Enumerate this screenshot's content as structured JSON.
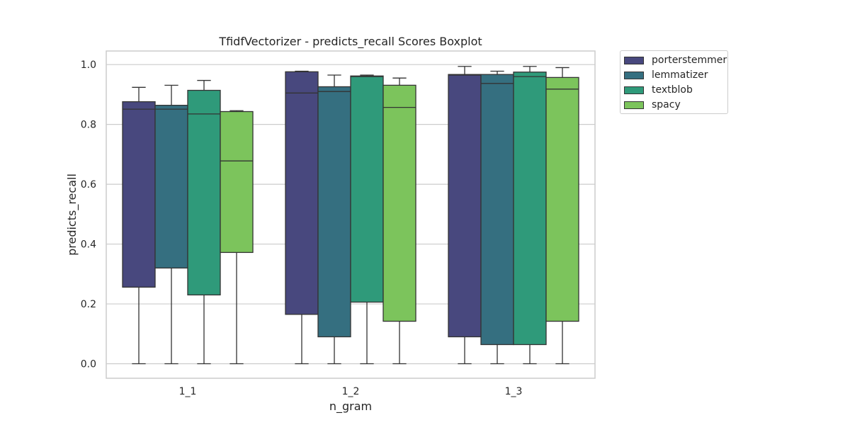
{
  "chart_data": {
    "type": "boxplot",
    "title": "TfidfVectorizer - predicts_recall  Scores Boxplot",
    "xlabel": "n_gram",
    "ylabel": "predicts_recall",
    "categories": [
      "1_1",
      "1_2",
      "1_3"
    ],
    "ylim": [
      -0.05,
      1.05
    ],
    "yticks": [
      "0.0",
      "0.2",
      "0.4",
      "0.6",
      "0.8",
      "1.0"
    ],
    "grid": true,
    "legend_position": "outside-top-right",
    "series": [
      {
        "name": "porterstemmer",
        "color": "#48487e",
        "boxes": [
          {
            "min": 0.0,
            "q1": 0.256,
            "median": 0.851,
            "q3": 0.876,
            "max": 0.924
          },
          {
            "min": 0.0,
            "q1": 0.165,
            "median": 0.905,
            "q3": 0.976,
            "max": 0.978
          },
          {
            "min": 0.0,
            "q1": 0.09,
            "median": 0.965,
            "q3": 0.967,
            "max": 0.994
          }
        ]
      },
      {
        "name": "lemmatizer",
        "color": "#356f80",
        "boxes": [
          {
            "min": 0.0,
            "q1": 0.32,
            "median": 0.851,
            "q3": 0.864,
            "max": 0.931
          },
          {
            "min": 0.0,
            "q1": 0.09,
            "median": 0.91,
            "q3": 0.926,
            "max": 0.965
          },
          {
            "min": 0.0,
            "q1": 0.064,
            "median": 0.937,
            "q3": 0.967,
            "max": 0.978
          }
        ]
      },
      {
        "name": "textblob",
        "color": "#2f9a7a",
        "boxes": [
          {
            "min": 0.0,
            "q1": 0.23,
            "median": 0.835,
            "q3": 0.914,
            "max": 0.947
          },
          {
            "min": 0.0,
            "q1": 0.206,
            "median": 0.96,
            "q3": 0.962,
            "max": 0.965
          },
          {
            "min": 0.0,
            "q1": 0.064,
            "median": 0.96,
            "q3": 0.975,
            "max": 0.994
          }
        ]
      },
      {
        "name": "spacy",
        "color": "#7cc45c",
        "boxes": [
          {
            "min": 0.0,
            "q1": 0.372,
            "median": 0.678,
            "q3": 0.843,
            "max": 0.846
          },
          {
            "min": 0.0,
            "q1": 0.142,
            "median": 0.857,
            "q3": 0.931,
            "max": 0.955
          },
          {
            "min": 0.0,
            "q1": 0.142,
            "median": 0.918,
            "q3": 0.957,
            "max": 0.99
          }
        ]
      }
    ]
  }
}
